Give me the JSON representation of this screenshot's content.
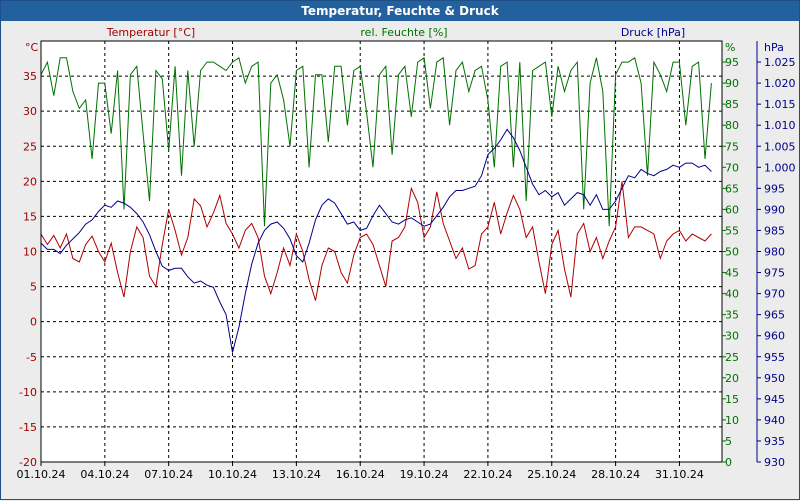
{
  "window": {
    "title": "Temperatur, Feuchte & Druck"
  },
  "chart_data": {
    "type": "line",
    "title": "Temperatur, Feuchte & Druck",
    "x": {
      "min": 0,
      "max": 32,
      "tick_positions": [
        0,
        3,
        6,
        9,
        12,
        15,
        18,
        21,
        24,
        27,
        30
      ],
      "tick_labels": [
        "01.10.24",
        "04.10.24",
        "07.10.24",
        "10.10.24",
        "13.10.24",
        "16.10.24",
        "19.10.24",
        "22.10.24",
        "25.10.24",
        "28.10.24",
        "31.10.24"
      ]
    },
    "axes": {
      "temperature": {
        "label": "Temperatur [°C]",
        "unit": "°C",
        "min": -20,
        "max": 40,
        "ticks": [
          35,
          30,
          25,
          20,
          15,
          10,
          5,
          0,
          -5,
          -10,
          -15,
          -20
        ],
        "color": "#a00000"
      },
      "humidity": {
        "label": "rel. Feuchte [%]",
        "unit": "%",
        "min": 0,
        "max": 100,
        "ticks": [
          95,
          90,
          85,
          80,
          75,
          70,
          65,
          60,
          55,
          50,
          45,
          40,
          35,
          30,
          25,
          20,
          15,
          10,
          5,
          0
        ],
        "color": "#007000"
      },
      "pressure": {
        "label": "Druck [hPa]",
        "unit": "hPa",
        "min": 930,
        "max": 1030,
        "ticks": [
          "1.025",
          "1.020",
          "1.015",
          "1.010",
          "1.005",
          "1.000",
          "995",
          "990",
          "985",
          "980",
          "975",
          "970",
          "965",
          "960",
          "955",
          "950",
          "945",
          "940",
          "935",
          "930"
        ],
        "color": "#00008b"
      }
    },
    "series": [
      {
        "name": "Temperatur",
        "axis": "temperature",
        "color": "#b00000",
        "x": [
          0,
          0.3,
          0.6,
          0.9,
          1.2,
          1.5,
          1.8,
          2.1,
          2.4,
          2.7,
          3.0,
          3.3,
          3.6,
          3.9,
          4.2,
          4.5,
          4.8,
          5.1,
          5.4,
          5.7,
          6.0,
          6.3,
          6.6,
          6.9,
          7.2,
          7.5,
          7.8,
          8.1,
          8.4,
          8.7,
          9.0,
          9.3,
          9.6,
          9.9,
          10.2,
          10.5,
          10.8,
          11.1,
          11.4,
          11.7,
          12.0,
          12.3,
          12.6,
          12.9,
          13.2,
          13.5,
          13.8,
          14.1,
          14.4,
          14.7,
          15.0,
          15.3,
          15.6,
          15.9,
          16.2,
          16.5,
          16.8,
          17.1,
          17.4,
          17.7,
          18.0,
          18.3,
          18.6,
          18.9,
          19.2,
          19.5,
          19.8,
          20.1,
          20.4,
          20.7,
          21.0,
          21.3,
          21.6,
          21.9,
          22.2,
          22.5,
          22.8,
          23.1,
          23.4,
          23.7,
          24.0,
          24.3,
          24.6,
          24.9,
          25.2,
          25.5,
          25.8,
          26.1,
          26.4,
          26.7,
          27.0,
          27.3,
          27.6,
          27.9,
          28.2,
          28.5,
          28.8,
          29.1,
          29.4,
          29.7,
          30.0,
          30.3,
          30.6,
          30.9,
          31.2,
          31.5
        ],
        "y": [
          12.5,
          11,
          12.3,
          10.5,
          12.5,
          9,
          8.5,
          11,
          12.2,
          10,
          8.5,
          11.2,
          7,
          3.5,
          10,
          13.5,
          12,
          6.5,
          5,
          11,
          16,
          13,
          9.5,
          12,
          17.5,
          16.5,
          13.5,
          15.5,
          18,
          14,
          12.5,
          10.5,
          13,
          14,
          12,
          6.5,
          4,
          7,
          10.5,
          8,
          12.5,
          10,
          6,
          3,
          8,
          10.5,
          10,
          7,
          5.5,
          9.5,
          12,
          12.5,
          11,
          8,
          5,
          11.5,
          12,
          13.5,
          19,
          17,
          12,
          13.5,
          18.5,
          14,
          11.5,
          9,
          10.5,
          7.5,
          8,
          12.5,
          13.5,
          17,
          12.5,
          15.5,
          18,
          16,
          12,
          13.5,
          8.5,
          4,
          11,
          13,
          7.5,
          3.5,
          12.5,
          14,
          10,
          12,
          9,
          11.5,
          13.5,
          20,
          12,
          13.5,
          13.5,
          13,
          12.5,
          9,
          11.5,
          12.5,
          13,
          11.5,
          12.5,
          12,
          11.5,
          12.5
        ]
      },
      {
        "name": "rel. Feuchte",
        "axis": "humidity",
        "color": "#007000",
        "x": [
          0,
          0.3,
          0.6,
          0.9,
          1.2,
          1.5,
          1.8,
          2.1,
          2.4,
          2.7,
          3.0,
          3.3,
          3.6,
          3.9,
          4.2,
          4.5,
          4.8,
          5.1,
          5.4,
          5.7,
          6.0,
          6.3,
          6.6,
          6.9,
          7.2,
          7.5,
          7.8,
          8.1,
          8.4,
          8.7,
          9.0,
          9.3,
          9.6,
          9.9,
          10.2,
          10.5,
          10.8,
          11.1,
          11.4,
          11.7,
          12.0,
          12.3,
          12.6,
          12.9,
          13.2,
          13.5,
          13.8,
          14.1,
          14.4,
          14.7,
          15.0,
          15.3,
          15.6,
          15.9,
          16.2,
          16.5,
          16.8,
          17.1,
          17.4,
          17.7,
          18.0,
          18.3,
          18.6,
          18.9,
          19.2,
          19.5,
          19.8,
          20.1,
          20.4,
          20.7,
          21.0,
          21.3,
          21.6,
          21.9,
          22.2,
          22.5,
          22.8,
          23.1,
          23.4,
          23.7,
          24.0,
          24.3,
          24.6,
          24.9,
          25.2,
          25.5,
          25.8,
          26.1,
          26.4,
          26.7,
          27.0,
          27.3,
          27.6,
          27.9,
          28.2,
          28.5,
          28.8,
          29.1,
          29.4,
          29.7,
          30.0,
          30.3,
          30.6,
          30.9,
          31.2,
          31.5
        ],
        "y": [
          92,
          95,
          87,
          96,
          96,
          88,
          84,
          86,
          72,
          90,
          90,
          78,
          93,
          60,
          92,
          94,
          78,
          62,
          93,
          91,
          74,
          94,
          68,
          93,
          75,
          93,
          95,
          95,
          94,
          93,
          95,
          96,
          90,
          94,
          95,
          56,
          90,
          92,
          86,
          75,
          93,
          94,
          70,
          92,
          92,
          76,
          94,
          94,
          80,
          93,
          94,
          83,
          70,
          92,
          94,
          73,
          92,
          94,
          82,
          95,
          96,
          84,
          95,
          96,
          80,
          93,
          95,
          88,
          93,
          94,
          86,
          70,
          94,
          95,
          70,
          95,
          62,
          93,
          94,
          95,
          82,
          94,
          88,
          93,
          95,
          60,
          90,
          96,
          88,
          56,
          92,
          95,
          95,
          96,
          90,
          68,
          95,
          92,
          88,
          95,
          95,
          80,
          94,
          95,
          72,
          90
        ]
      },
      {
        "name": "Druck",
        "axis": "pressure",
        "color": "#00008b",
        "x": [
          0,
          0.3,
          0.6,
          0.9,
          1.2,
          1.5,
          1.8,
          2.1,
          2.4,
          2.7,
          3.0,
          3.3,
          3.6,
          3.9,
          4.2,
          4.5,
          4.8,
          5.1,
          5.4,
          5.7,
          6.0,
          6.3,
          6.6,
          6.9,
          7.2,
          7.5,
          7.8,
          8.1,
          8.4,
          8.7,
          9.0,
          9.3,
          9.6,
          9.9,
          10.2,
          10.5,
          10.8,
          11.1,
          11.4,
          11.7,
          12.0,
          12.3,
          12.6,
          12.9,
          13.2,
          13.5,
          13.8,
          14.1,
          14.4,
          14.7,
          15.0,
          15.3,
          15.6,
          15.9,
          16.2,
          16.5,
          16.8,
          17.1,
          17.4,
          17.7,
          18.0,
          18.3,
          18.6,
          18.9,
          19.2,
          19.5,
          19.8,
          20.1,
          20.4,
          20.7,
          21.0,
          21.3,
          21.6,
          21.9,
          22.2,
          22.5,
          22.8,
          23.1,
          23.4,
          23.7,
          24.0,
          24.3,
          24.6,
          24.9,
          25.2,
          25.5,
          25.8,
          26.1,
          26.4,
          26.7,
          27.0,
          27.3,
          27.6,
          27.9,
          28.2,
          28.5,
          28.8,
          29.1,
          29.4,
          29.7,
          30.0,
          30.3,
          30.6,
          30.9,
          31.2,
          31.5
        ],
        "y": [
          982,
          980.5,
          980.5,
          979.5,
          981.5,
          983,
          984.5,
          986.5,
          987.5,
          989.5,
          991,
          990.5,
          992,
          991.5,
          990.5,
          989,
          987,
          984,
          980,
          976.5,
          975.5,
          976,
          976,
          974,
          972.5,
          973,
          972,
          971.5,
          968,
          965,
          956,
          962,
          970,
          977,
          982,
          985,
          986.5,
          987,
          985.5,
          983,
          979,
          977.5,
          982,
          987.5,
          991,
          992.5,
          991.5,
          989,
          986.5,
          987,
          985,
          985.5,
          988.5,
          991,
          989,
          987,
          986.5,
          987.5,
          988,
          987,
          986,
          986.5,
          988.5,
          990.5,
          993,
          994.5,
          994.5,
          995,
          995.5,
          998,
          1003,
          1004.5,
          1006.5,
          1009,
          1007,
          1004,
          1000,
          996,
          993.5,
          994.5,
          993,
          994,
          991,
          992.5,
          994,
          993.5,
          991,
          993.5,
          990,
          990,
          992,
          995,
          998,
          997.5,
          999.5,
          998.5,
          998,
          999,
          999.5,
          1000.5,
          1000,
          1001,
          1001,
          1000,
          1000.5,
          999
        ]
      }
    ]
  }
}
